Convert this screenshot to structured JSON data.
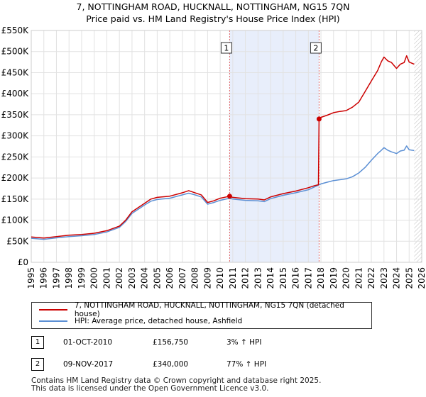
{
  "chart_data": {
    "type": "line",
    "title": "7, NOTTINGHAM ROAD, HUCKNALL, NOTTINGHAM, NG15 7QN",
    "subtitle": "Price paid vs. HM Land Registry's House Price Index (HPI)",
    "x_ticks": [
      "1995",
      "1996",
      "1997",
      "1998",
      "1999",
      "2000",
      "2001",
      "2002",
      "2003",
      "2004",
      "2005",
      "2006",
      "2007",
      "2008",
      "2009",
      "2010",
      "2011",
      "2012",
      "2013",
      "2014",
      "2015",
      "2016",
      "2017",
      "2018",
      "2019",
      "2020",
      "2021",
      "2022",
      "2023",
      "2024",
      "2025",
      "2026"
    ],
    "y_ticks": [
      "£0",
      "£50K",
      "£100K",
      "£150K",
      "£200K",
      "£250K",
      "£300K",
      "£350K",
      "£400K",
      "£450K",
      "£500K",
      "£550K"
    ],
    "xlim": [
      1995,
      2026
    ],
    "ylim": [
      0,
      550000
    ],
    "grid": true,
    "shaded_region": [
      2010.75,
      2017.85
    ],
    "hatched_after": 2025.4,
    "colors": {
      "property": "#cc0000",
      "hpi": "#5b8fd4",
      "shade": "#e8eefb",
      "marker_line": "#e06666"
    },
    "series": [
      {
        "name": "7, NOTTINGHAM ROAD, HUCKNALL, NOTTINGHAM, NG15 7QN (detached house)",
        "color": "#cc0000",
        "points": [
          [
            1995.0,
            60000
          ],
          [
            1996.0,
            57500
          ],
          [
            1997.0,
            61000
          ],
          [
            1998.0,
            64500
          ],
          [
            1999.0,
            66000
          ],
          [
            2000.0,
            69000
          ],
          [
            2001.0,
            75000
          ],
          [
            2002.0,
            86000
          ],
          [
            2002.5,
            100000
          ],
          [
            2003.0,
            120000
          ],
          [
            2003.5,
            130000
          ],
          [
            2004.0,
            140000
          ],
          [
            2004.5,
            150000
          ],
          [
            2005.0,
            154000
          ],
          [
            2006.0,
            157000
          ],
          [
            2007.0,
            165000
          ],
          [
            2007.5,
            170000
          ],
          [
            2008.0,
            165000
          ],
          [
            2008.5,
            160000
          ],
          [
            2009.0,
            142000
          ],
          [
            2009.5,
            146000
          ],
          [
            2010.0,
            152000
          ],
          [
            2010.75,
            156750
          ],
          [
            2011.0,
            154000
          ],
          [
            2012.0,
            151000
          ],
          [
            2013.0,
            150000
          ],
          [
            2013.5,
            148000
          ],
          [
            2014.0,
            155000
          ],
          [
            2015.0,
            163000
          ],
          [
            2016.0,
            169000
          ],
          [
            2017.0,
            177000
          ],
          [
            2017.5,
            182000
          ],
          [
            2017.8,
            184000
          ],
          [
            2017.85,
            340000
          ],
          [
            2018.0,
            344000
          ],
          [
            2018.5,
            349000
          ],
          [
            2019.0,
            355000
          ],
          [
            2019.5,
            358000
          ],
          [
            2020.0,
            360000
          ],
          [
            2020.5,
            368000
          ],
          [
            2021.0,
            380000
          ],
          [
            2021.5,
            405000
          ],
          [
            2022.0,
            430000
          ],
          [
            2022.5,
            455000
          ],
          [
            2022.8,
            476000
          ],
          [
            2023.0,
            487000
          ],
          [
            2023.3,
            478000
          ],
          [
            2023.6,
            474000
          ],
          [
            2024.0,
            460000
          ],
          [
            2024.3,
            470000
          ],
          [
            2024.6,
            474000
          ],
          [
            2024.8,
            490000
          ],
          [
            2025.0,
            475000
          ],
          [
            2025.4,
            470000
          ]
        ]
      },
      {
        "name": "HPI: Average price, detached house, Ashfield",
        "color": "#5b8fd4",
        "points": [
          [
            1995.0,
            57000
          ],
          [
            1996.0,
            54500
          ],
          [
            1997.0,
            58000
          ],
          [
            1998.0,
            61000
          ],
          [
            1999.0,
            63000
          ],
          [
            2000.0,
            66000
          ],
          [
            2001.0,
            72000
          ],
          [
            2002.0,
            83000
          ],
          [
            2002.5,
            97000
          ],
          [
            2003.0,
            116000
          ],
          [
            2003.5,
            126000
          ],
          [
            2004.0,
            136000
          ],
          [
            2004.5,
            145000
          ],
          [
            2005.0,
            149000
          ],
          [
            2006.0,
            152000
          ],
          [
            2007.0,
            160000
          ],
          [
            2007.5,
            164000
          ],
          [
            2008.0,
            160000
          ],
          [
            2008.5,
            155000
          ],
          [
            2009.0,
            138000
          ],
          [
            2009.5,
            142000
          ],
          [
            2010.0,
            147000
          ],
          [
            2010.75,
            152000
          ],
          [
            2011.0,
            150000
          ],
          [
            2012.0,
            147000
          ],
          [
            2013.0,
            146000
          ],
          [
            2013.5,
            144000
          ],
          [
            2014.0,
            151000
          ],
          [
            2015.0,
            159000
          ],
          [
            2016.0,
            165000
          ],
          [
            2017.0,
            172000
          ],
          [
            2017.5,
            179000
          ],
          [
            2018.0,
            186000
          ],
          [
            2018.5,
            190000
          ],
          [
            2019.0,
            194000
          ],
          [
            2019.5,
            196000
          ],
          [
            2020.0,
            198000
          ],
          [
            2020.5,
            203000
          ],
          [
            2021.0,
            212000
          ],
          [
            2021.5,
            225000
          ],
          [
            2022.0,
            242000
          ],
          [
            2022.5,
            258000
          ],
          [
            2022.8,
            266000
          ],
          [
            2023.0,
            272000
          ],
          [
            2023.3,
            266000
          ],
          [
            2023.6,
            262000
          ],
          [
            2024.0,
            258000
          ],
          [
            2024.3,
            264000
          ],
          [
            2024.6,
            266000
          ],
          [
            2024.8,
            276000
          ],
          [
            2025.0,
            267000
          ],
          [
            2025.4,
            265000
          ]
        ]
      }
    ],
    "annotations": [
      {
        "label": "1",
        "x": 2010.75,
        "y": 156750
      },
      {
        "label": "2",
        "x": 2017.85,
        "y": 340000
      }
    ]
  },
  "legend": {
    "property_label": "7, NOTTINGHAM ROAD, HUCKNALL, NOTTINGHAM, NG15 7QN (detached house)",
    "hpi_label": "HPI: Average price, detached house, Ashfield"
  },
  "sales": [
    {
      "num": "1",
      "date": "01-OCT-2010",
      "price": "£156,750",
      "hpi": "3% ↑ HPI"
    },
    {
      "num": "2",
      "date": "09-NOV-2017",
      "price": "£340,000",
      "hpi": "77% ↑ HPI"
    }
  ],
  "footer": {
    "line1": "Contains HM Land Registry data © Crown copyright and database right 2025.",
    "line2": "This data is licensed under the Open Government Licence v3.0."
  }
}
